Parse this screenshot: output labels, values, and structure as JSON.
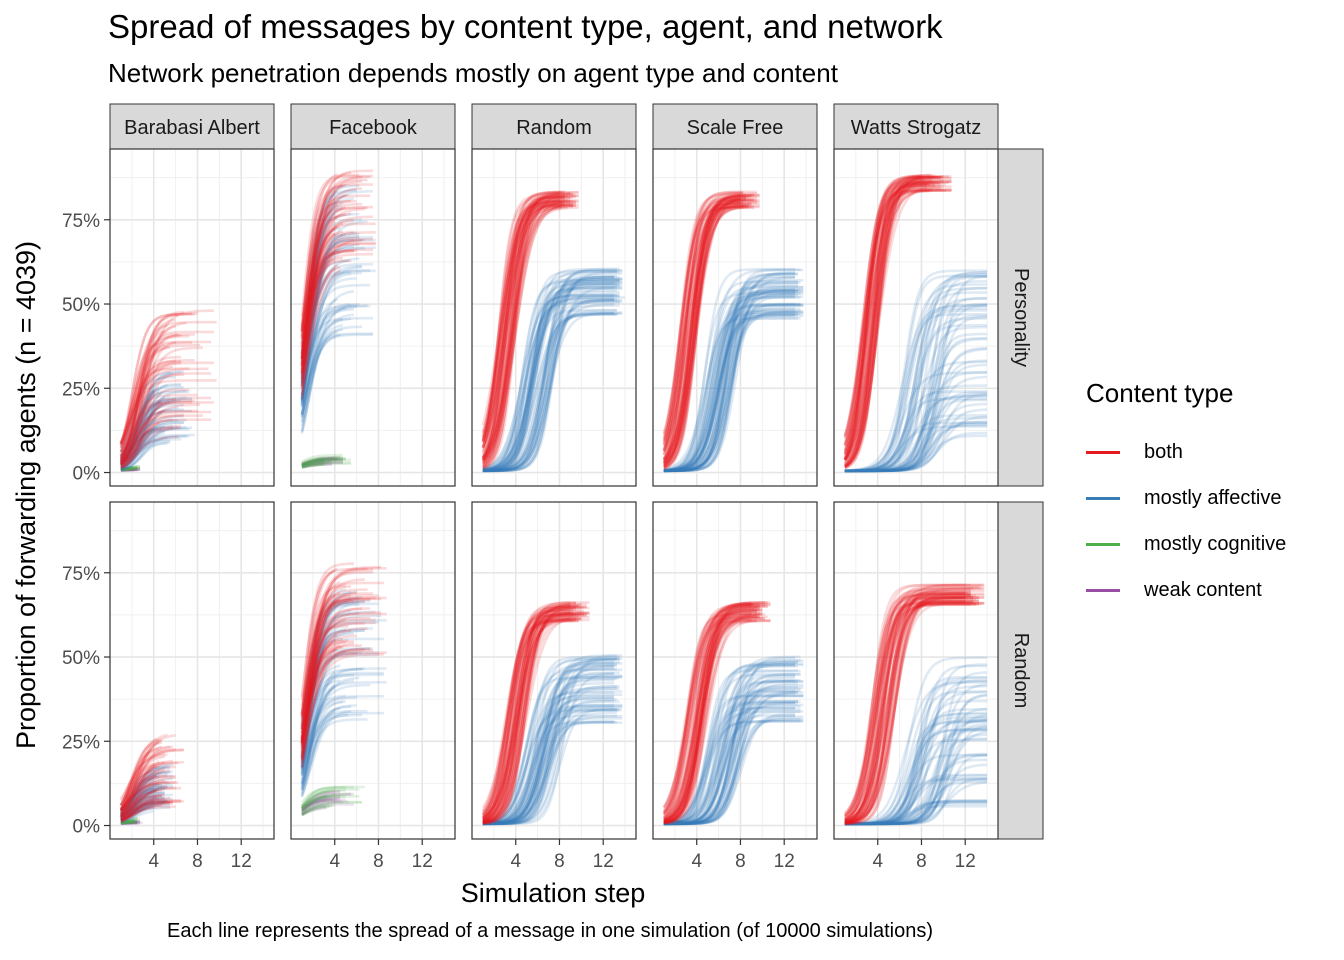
{
  "title": "Spread of messages by content type, agent, and network",
  "subtitle": "Network penetration depends mostly on agent type and content",
  "caption": "Each line represents the spread of a message in one simulation (of 10000 simulations)",
  "legend": {
    "title": "Content type",
    "items": [
      {
        "label": "both",
        "color": "#E41A1C"
      },
      {
        "label": "mostly affective",
        "color": "#377EB8"
      },
      {
        "label": "mostly cognitive",
        "color": "#4DAF4A"
      },
      {
        "label": "weak content",
        "color": "#984EA3"
      }
    ]
  },
  "chart_data": {
    "type": "line",
    "xlabel": "Simulation step",
    "ylabel": "Proportion of forwarding agents (n = 4039)",
    "x_ticks": [
      4,
      8,
      12
    ],
    "x_tick_labels": [
      "4",
      "8",
      "12"
    ],
    "xlim": [
      0,
      15
    ],
    "y_ticks": [
      0,
      0.25,
      0.5,
      0.75
    ],
    "y_tick_labels": [
      "0%",
      "25%",
      "50%",
      "75%"
    ],
    "ylim": [
      -0.04,
      0.96
    ],
    "grid": true,
    "legend_position": "right",
    "columns": [
      "Barabasi Albert",
      "Facebook",
      "Random",
      "Scale Free",
      "Watts Strogatz"
    ],
    "rows": [
      "Personality",
      "Random"
    ],
    "series_colors": {
      "both": "#E41A1C",
      "mostly affective": "#377EB8",
      "mostly cognitive": "#4DAF4A",
      "weak content": "#984EA3"
    },
    "panels": [
      {
        "column": "Barabasi Albert",
        "row": "Personality",
        "series": [
          {
            "content": "both",
            "plateau_range": [
              0.1,
              0.48
            ],
            "midpoint_step": 2.5,
            "end_step_range": [
              4,
              10
            ]
          },
          {
            "content": "mostly affective",
            "plateau_range": [
              0.08,
              0.3
            ],
            "midpoint_step": 2.5,
            "end_step_range": [
              4,
              8
            ]
          },
          {
            "content": "mostly cognitive",
            "plateau_range": [
              0.005,
              0.02
            ],
            "midpoint_step": 1.5,
            "end_step_range": [
              2,
              3
            ]
          },
          {
            "content": "weak content",
            "plateau_range": [
              0.002,
              0.01
            ],
            "midpoint_step": 1.5,
            "end_step_range": [
              2,
              3
            ]
          }
        ]
      },
      {
        "column": "Facebook",
        "row": "Personality",
        "series": [
          {
            "content": "both",
            "plateau_range": [
              0.6,
              0.9
            ],
            "midpoint_step": 1.2,
            "end_step_range": [
              4,
              8
            ]
          },
          {
            "content": "mostly affective",
            "plateau_range": [
              0.4,
              0.86
            ],
            "midpoint_step": 1.4,
            "end_step_range": [
              4,
              8
            ]
          },
          {
            "content": "mostly cognitive",
            "plateau_range": [
              0.02,
              0.05
            ],
            "midpoint_step": 1.0,
            "end_step_range": [
              3,
              6
            ]
          },
          {
            "content": "weak content",
            "plateau_range": [
              0.02,
              0.04
            ],
            "midpoint_step": 1.0,
            "end_step_range": [
              3,
              5
            ]
          }
        ]
      },
      {
        "column": "Random",
        "row": "Personality",
        "series": [
          {
            "content": "both",
            "plateau_range": [
              0.78,
              0.83
            ],
            "midpoint_step": 3.2,
            "end_step_range": [
              8,
              10
            ]
          },
          {
            "content": "mostly affective",
            "plateau_range": [
              0.45,
              0.6
            ],
            "midpoint_step": 6.0,
            "end_step_range": [
              13,
              14
            ]
          }
        ]
      },
      {
        "column": "Scale Free",
        "row": "Personality",
        "series": [
          {
            "content": "both",
            "plateau_range": [
              0.78,
              0.83
            ],
            "midpoint_step": 3.2,
            "end_step_range": [
              8,
              10
            ]
          },
          {
            "content": "mostly affective",
            "plateau_range": [
              0.45,
              0.6
            ],
            "midpoint_step": 6.0,
            "end_step_range": [
              13,
              14
            ]
          }
        ]
      },
      {
        "column": "Watts Strogatz",
        "row": "Personality",
        "series": [
          {
            "content": "both",
            "plateau_range": [
              0.83,
              0.88
            ],
            "midpoint_step": 3.3,
            "end_step_range": [
              8,
              11
            ]
          },
          {
            "content": "mostly affective",
            "plateau_range": [
              0.1,
              0.6
            ],
            "midpoint_step": 8.0,
            "end_step_range": [
              14,
              14
            ]
          }
        ]
      },
      {
        "column": "Barabasi Albert",
        "row": "Random",
        "series": [
          {
            "content": "both",
            "plateau_range": [
              0.05,
              0.28
            ],
            "midpoint_step": 2.0,
            "end_step_range": [
              4,
              7
            ]
          },
          {
            "content": "mostly affective",
            "plateau_range": [
              0.04,
              0.18
            ],
            "midpoint_step": 2.0,
            "end_step_range": [
              4,
              6
            ]
          },
          {
            "content": "mostly cognitive",
            "plateau_range": [
              0.005,
              0.02
            ],
            "midpoint_step": 1.5,
            "end_step_range": [
              2,
              3
            ]
          },
          {
            "content": "weak content",
            "plateau_range": [
              0.002,
              0.01
            ],
            "midpoint_step": 1.5,
            "end_step_range": [
              2,
              3
            ]
          }
        ]
      },
      {
        "column": "Facebook",
        "row": "Random",
        "series": [
          {
            "content": "both",
            "plateau_range": [
              0.5,
              0.78
            ],
            "midpoint_step": 1.3,
            "end_step_range": [
              4,
              9
            ]
          },
          {
            "content": "mostly affective",
            "plateau_range": [
              0.3,
              0.7
            ],
            "midpoint_step": 1.5,
            "end_step_range": [
              4,
              9
            ]
          },
          {
            "content": "mostly cognitive",
            "plateau_range": [
              0.05,
              0.11
            ],
            "midpoint_step": 1.0,
            "end_step_range": [
              3,
              7
            ]
          },
          {
            "content": "weak content",
            "plateau_range": [
              0.05,
              0.1
            ],
            "midpoint_step": 1.0,
            "end_step_range": [
              3,
              6
            ]
          }
        ]
      },
      {
        "column": "Random",
        "row": "Random",
        "series": [
          {
            "content": "both",
            "plateau_range": [
              0.6,
              0.66
            ],
            "midpoint_step": 4.0,
            "end_step_range": [
              9,
              11
            ]
          },
          {
            "content": "mostly affective",
            "plateau_range": [
              0.3,
              0.5
            ],
            "midpoint_step": 6.5,
            "end_step_range": [
              13,
              14
            ]
          },
          {
            "content": "mostly cognitive",
            "plateau_range": [
              0.003,
              0.01
            ],
            "midpoint_step": 1.5,
            "end_step_range": [
              2,
              3
            ]
          }
        ]
      },
      {
        "column": "Scale Free",
        "row": "Random",
        "series": [
          {
            "content": "both",
            "plateau_range": [
              0.6,
              0.66
            ],
            "midpoint_step": 4.0,
            "end_step_range": [
              9,
              11
            ]
          },
          {
            "content": "mostly affective",
            "plateau_range": [
              0.3,
              0.5
            ],
            "midpoint_step": 6.5,
            "end_step_range": [
              13,
              14
            ]
          },
          {
            "content": "mostly cognitive",
            "plateau_range": [
              0.003,
              0.01
            ],
            "midpoint_step": 1.5,
            "end_step_range": [
              2,
              3
            ]
          }
        ]
      },
      {
        "column": "Watts Strogatz",
        "row": "Random",
        "series": [
          {
            "content": "both",
            "plateau_range": [
              0.65,
              0.71
            ],
            "midpoint_step": 4.5,
            "end_step_range": [
              12,
              14
            ]
          },
          {
            "content": "mostly affective",
            "plateau_range": [
              0.05,
              0.5
            ],
            "midpoint_step": 8.5,
            "end_step_range": [
              14,
              14
            ]
          }
        ]
      }
    ]
  }
}
